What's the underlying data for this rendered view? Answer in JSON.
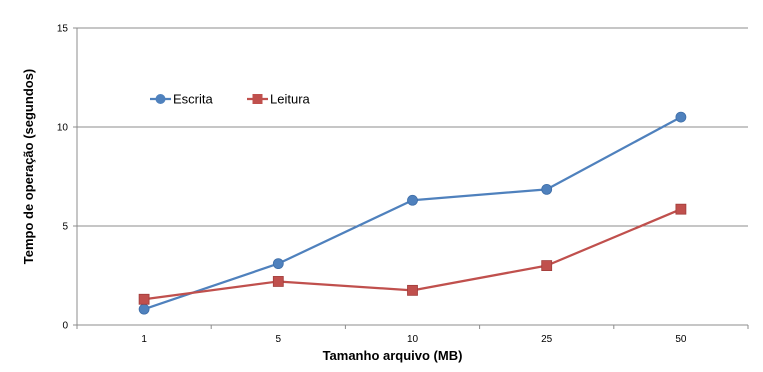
{
  "chart_data": {
    "type": "line",
    "categories": [
      "1",
      "5",
      "10",
      "25",
      "50"
    ],
    "series": [
      {
        "name": "Escrita",
        "values": [
          0.8,
          3.1,
          6.3,
          6.85,
          10.5
        ],
        "color": "#4F81BD",
        "marker": "circle"
      },
      {
        "name": "Leitura",
        "values": [
          1.3,
          2.2,
          1.75,
          3.0,
          5.85
        ],
        "color": "#C0504D",
        "marker": "square"
      }
    ],
    "title": "",
    "xlabel": "Tamanho arquivo (MB)",
    "ylabel": "Tempo de operação (segundos)",
    "ylim": [
      0,
      15
    ],
    "yticks": [
      0,
      5,
      10,
      15
    ],
    "grid": "horizontal",
    "legend_position": "top-left"
  }
}
